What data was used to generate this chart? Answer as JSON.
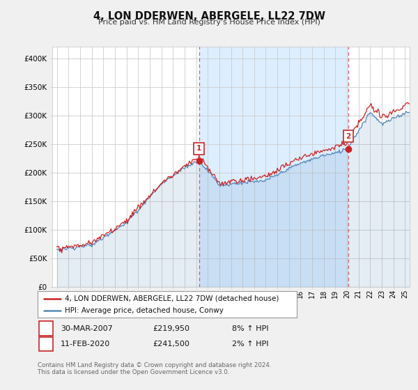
{
  "title": "4, LON DDERWEN, ABERGELE, LL22 7DW",
  "subtitle": "Price paid vs. HM Land Registry's House Price Index (HPI)",
  "hpi_label": "HPI: Average price, detached house, Conwy",
  "property_label": "4, LON DDERWEN, ABERGELE, LL22 7DW (detached house)",
  "footer": "Contains HM Land Registry data © Crown copyright and database right 2024.\nThis data is licensed under the Open Government Licence v3.0.",
  "annotation1": {
    "num": "1",
    "date": "30-MAR-2007",
    "price": "£219,950",
    "hpi": "8% ↑ HPI"
  },
  "annotation2": {
    "num": "2",
    "date": "11-FEB-2020",
    "price": "£241,500",
    "hpi": "2% ↑ HPI"
  },
  "ylim": [
    0,
    420000
  ],
  "yticks": [
    0,
    50000,
    100000,
    150000,
    200000,
    250000,
    300000,
    350000,
    400000
  ],
  "ytick_labels": [
    "£0",
    "£50K",
    "£100K",
    "£150K",
    "£200K",
    "£250K",
    "£300K",
    "£350K",
    "£400K"
  ],
  "hpi_color": "#5588bb",
  "property_color": "#cc2222",
  "vline_color": "#cc4444",
  "background_color": "#f0f0f0",
  "plot_bg_color": "#ffffff",
  "shade_color": "#ddeeff",
  "grid_color": "#cccccc",
  "sale1_year": 2007.24,
  "sale1_price": 219950,
  "sale2_year": 2020.12,
  "sale2_price": 241500,
  "xlim_start": 1994.6,
  "xlim_end": 2025.4
}
